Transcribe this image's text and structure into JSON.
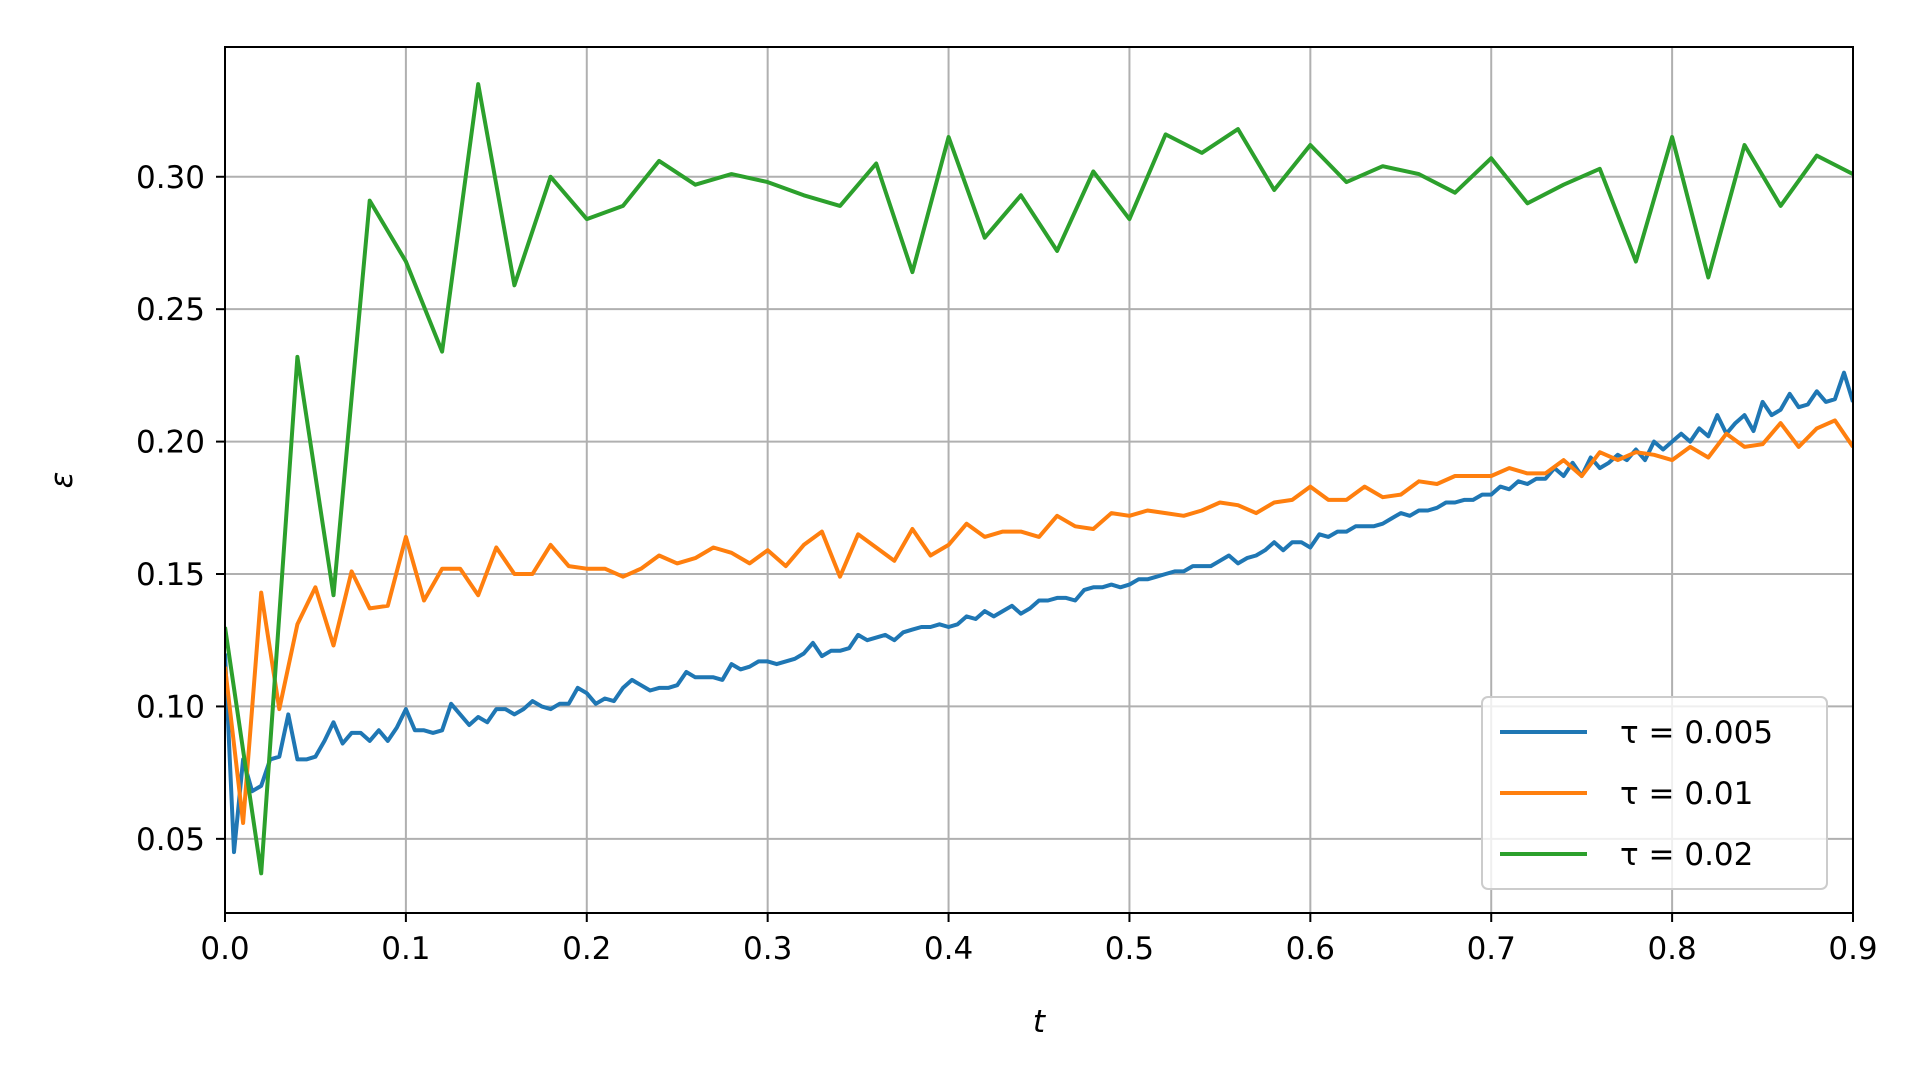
{
  "chart_data": {
    "type": "line",
    "title": "",
    "xlabel": "t",
    "ylabel": "ε",
    "xlim": [
      0.0,
      0.9
    ],
    "ylim": [
      0.022,
      0.349
    ],
    "xticks": [
      "0.0",
      "0.1",
      "0.2",
      "0.3",
      "0.4",
      "0.5",
      "0.6",
      "0.7",
      "0.8",
      "0.9"
    ],
    "yticks": [
      "0.05",
      "0.10",
      "0.15",
      "0.20",
      "0.25",
      "0.30"
    ],
    "grid": true,
    "legend_position": "lower-right",
    "series": [
      {
        "name": "τ = 0.005",
        "color": "#1f77b4",
        "x": [
          0,
          0.005,
          0.01,
          0.015,
          0.02,
          0.025,
          0.03,
          0.035,
          0.04,
          0.045,
          0.05,
          0.055,
          0.06,
          0.065,
          0.07,
          0.075,
          0.08,
          0.085,
          0.09,
          0.095,
          0.1,
          0.105,
          0.11,
          0.115,
          0.12,
          0.125,
          0.13,
          0.135,
          0.14,
          0.145,
          0.15,
          0.155,
          0.16,
          0.165,
          0.17,
          0.175,
          0.18,
          0.185,
          0.19,
          0.195,
          0.2,
          0.205,
          0.21,
          0.215,
          0.22,
          0.225,
          0.23,
          0.235,
          0.24,
          0.245,
          0.25,
          0.255,
          0.26,
          0.265,
          0.27,
          0.275,
          0.28,
          0.285,
          0.29,
          0.295,
          0.3,
          0.305,
          0.31,
          0.315,
          0.32,
          0.325,
          0.33,
          0.335,
          0.34,
          0.345,
          0.35,
          0.355,
          0.36,
          0.365,
          0.37,
          0.375,
          0.38,
          0.385,
          0.39,
          0.395,
          0.4,
          0.405,
          0.41,
          0.415,
          0.42,
          0.425,
          0.43,
          0.435,
          0.44,
          0.445,
          0.45,
          0.455,
          0.46,
          0.465,
          0.47,
          0.475,
          0.48,
          0.485,
          0.49,
          0.495,
          0.5,
          0.505,
          0.51,
          0.515,
          0.52,
          0.525,
          0.53,
          0.535,
          0.54,
          0.545,
          0.55,
          0.555,
          0.56,
          0.565,
          0.57,
          0.575,
          0.58,
          0.585,
          0.59,
          0.595,
          0.6,
          0.605,
          0.61,
          0.615,
          0.62,
          0.625,
          0.63,
          0.635,
          0.64,
          0.645,
          0.65,
          0.655,
          0.66,
          0.665,
          0.67,
          0.675,
          0.68,
          0.685,
          0.69,
          0.695,
          0.7,
          0.705,
          0.71,
          0.715,
          0.72,
          0.725,
          0.73,
          0.735,
          0.74,
          0.745,
          0.75,
          0.755,
          0.76,
          0.765,
          0.77,
          0.775,
          0.78,
          0.785,
          0.79,
          0.795,
          0.8,
          0.805,
          0.81,
          0.815,
          0.82,
          0.825,
          0.83,
          0.835,
          0.84,
          0.845,
          0.85,
          0.855,
          0.86,
          0.865,
          0.87,
          0.875,
          0.88,
          0.885,
          0.89,
          0.895,
          0.9
        ],
        "y": [
          0.12,
          0.045,
          0.08,
          0.068,
          0.07,
          0.08,
          0.081,
          0.097,
          0.08,
          0.08,
          0.081,
          0.087,
          0.094,
          0.086,
          0.09,
          0.09,
          0.087,
          0.091,
          0.087,
          0.092,
          0.099,
          0.091,
          0.091,
          0.09,
          0.091,
          0.101,
          0.097,
          0.093,
          0.096,
          0.094,
          0.099,
          0.099,
          0.097,
          0.099,
          0.102,
          0.1,
          0.099,
          0.101,
          0.101,
          0.107,
          0.105,
          0.101,
          0.103,
          0.102,
          0.107,
          0.11,
          0.108,
          0.106,
          0.107,
          0.107,
          0.108,
          0.113,
          0.111,
          0.111,
          0.111,
          0.11,
          0.116,
          0.114,
          0.115,
          0.117,
          0.117,
          0.116,
          0.117,
          0.118,
          0.12,
          0.124,
          0.119,
          0.121,
          0.121,
          0.122,
          0.127,
          0.125,
          0.126,
          0.127,
          0.125,
          0.128,
          0.129,
          0.13,
          0.13,
          0.131,
          0.13,
          0.131,
          0.134,
          0.133,
          0.136,
          0.134,
          0.136,
          0.138,
          0.135,
          0.137,
          0.14,
          0.14,
          0.141,
          0.141,
          0.14,
          0.144,
          0.145,
          0.145,
          0.146,
          0.145,
          0.146,
          0.148,
          0.148,
          0.149,
          0.15,
          0.151,
          0.151,
          0.153,
          0.153,
          0.153,
          0.155,
          0.157,
          0.154,
          0.156,
          0.157,
          0.159,
          0.162,
          0.159,
          0.162,
          0.162,
          0.16,
          0.165,
          0.164,
          0.166,
          0.166,
          0.168,
          0.168,
          0.168,
          0.169,
          0.171,
          0.173,
          0.172,
          0.174,
          0.174,
          0.175,
          0.177,
          0.177,
          0.178,
          0.178,
          0.18,
          0.18,
          0.183,
          0.182,
          0.185,
          0.184,
          0.186,
          0.186,
          0.19,
          0.187,
          0.192,
          0.187,
          0.194,
          0.19,
          0.192,
          0.195,
          0.193,
          0.197,
          0.193,
          0.2,
          0.197,
          0.2,
          0.203,
          0.2,
          0.205,
          0.202,
          0.21,
          0.203,
          0.207,
          0.21,
          0.204,
          0.215,
          0.21,
          0.212,
          0.218,
          0.213,
          0.214,
          0.219,
          0.215,
          0.216,
          0.226,
          0.215
        ]
      },
      {
        "name": "τ = 0.01",
        "color": "#ff7f0e",
        "x": [
          0,
          0.01,
          0.02,
          0.03,
          0.04,
          0.05,
          0.06,
          0.07,
          0.08,
          0.09,
          0.1,
          0.11,
          0.12,
          0.13,
          0.14,
          0.15,
          0.16,
          0.17,
          0.18,
          0.19,
          0.2,
          0.21,
          0.22,
          0.23,
          0.24,
          0.25,
          0.26,
          0.27,
          0.28,
          0.29,
          0.3,
          0.31,
          0.32,
          0.33,
          0.34,
          0.35,
          0.36,
          0.37,
          0.38,
          0.39,
          0.4,
          0.41,
          0.42,
          0.43,
          0.44,
          0.45,
          0.46,
          0.47,
          0.48,
          0.49,
          0.5,
          0.51,
          0.52,
          0.53,
          0.54,
          0.55,
          0.56,
          0.57,
          0.58,
          0.59,
          0.6,
          0.61,
          0.62,
          0.63,
          0.64,
          0.65,
          0.66,
          0.67,
          0.68,
          0.69,
          0.7,
          0.71,
          0.72,
          0.73,
          0.74,
          0.75,
          0.76,
          0.77,
          0.78,
          0.79,
          0.8,
          0.81,
          0.82,
          0.83,
          0.84,
          0.85,
          0.86,
          0.87,
          0.88,
          0.89,
          0.9
        ],
        "y": [
          0.115,
          0.056,
          0.143,
          0.099,
          0.131,
          0.145,
          0.123,
          0.151,
          0.137,
          0.138,
          0.164,
          0.14,
          0.152,
          0.152,
          0.142,
          0.16,
          0.15,
          0.15,
          0.161,
          0.153,
          0.152,
          0.152,
          0.149,
          0.152,
          0.157,
          0.154,
          0.156,
          0.16,
          0.158,
          0.154,
          0.159,
          0.153,
          0.161,
          0.166,
          0.149,
          0.165,
          0.16,
          0.155,
          0.167,
          0.157,
          0.161,
          0.169,
          0.164,
          0.166,
          0.166,
          0.164,
          0.172,
          0.168,
          0.167,
          0.173,
          0.172,
          0.174,
          0.173,
          0.172,
          0.174,
          0.177,
          0.176,
          0.173,
          0.177,
          0.178,
          0.183,
          0.178,
          0.178,
          0.183,
          0.179,
          0.18,
          0.185,
          0.184,
          0.187,
          0.187,
          0.187,
          0.19,
          0.188,
          0.188,
          0.193,
          0.187,
          0.196,
          0.193,
          0.196,
          0.195,
          0.193,
          0.198,
          0.194,
          0.203,
          0.198,
          0.199,
          0.207,
          0.198,
          0.205,
          0.208,
          0.198
        ]
      },
      {
        "name": "τ = 0.02",
        "color": "#2ca02c",
        "x": [
          0,
          0.02,
          0.04,
          0.06,
          0.08,
          0.1,
          0.12,
          0.14,
          0.16,
          0.18,
          0.2,
          0.22,
          0.24,
          0.26,
          0.28,
          0.3,
          0.32,
          0.34,
          0.36,
          0.38,
          0.4,
          0.42,
          0.44,
          0.46,
          0.48,
          0.5,
          0.52,
          0.54,
          0.56,
          0.58,
          0.6,
          0.62,
          0.64,
          0.66,
          0.68,
          0.7,
          0.72,
          0.74,
          0.76,
          0.78,
          0.8,
          0.82,
          0.84,
          0.86,
          0.88,
          0.9
        ],
        "y": [
          0.13,
          0.037,
          0.232,
          0.142,
          0.291,
          0.268,
          0.234,
          0.335,
          0.259,
          0.3,
          0.284,
          0.289,
          0.306,
          0.297,
          0.301,
          0.298,
          0.293,
          0.289,
          0.305,
          0.264,
          0.315,
          0.277,
          0.293,
          0.272,
          0.302,
          0.284,
          0.316,
          0.309,
          0.318,
          0.295,
          0.312,
          0.298,
          0.304,
          0.301,
          0.294,
          0.307,
          0.29,
          0.297,
          0.303,
          0.268,
          0.315,
          0.262,
          0.312,
          0.289,
          0.308,
          0.301
        ]
      }
    ]
  }
}
